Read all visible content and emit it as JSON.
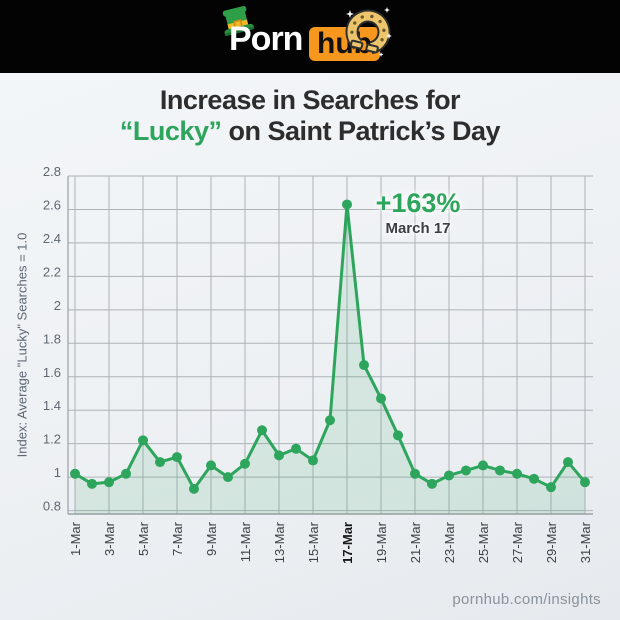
{
  "colors": {
    "green": "#2EA55C",
    "orange": "#F7971E",
    "header_bg": "#030303",
    "title_text": "#2D2D2D",
    "grid": "#ADB2B8",
    "axis": "#9AA0A6",
    "tick_text": "#5E6772",
    "x_tick_text": "#3F4347",
    "x_tick_bold_text": "#17181A",
    "footer_text": "#8B929B",
    "area_fill": "rgba(47,160,92,0.13)"
  },
  "header": {
    "logo_word1": "Porn",
    "logo_word2": "hub",
    "icons": [
      "leprechaun-hat-icon",
      "horseshoe-icon",
      "sparkle-icon"
    ]
  },
  "title": {
    "line1": "Increase in Searches for",
    "line2_highlight": "“Lucky”",
    "line2_rest": " on Saint Patrick’s Day"
  },
  "annotation": {
    "value": "+163%",
    "date": "March 17"
  },
  "footer": {
    "url": "pornhub.com/insights"
  },
  "chart_data": {
    "type": "line",
    "title": "Increase in Searches for “Lucky” on Saint Patrick’s Day",
    "ylabel": "Index: Average \"Lucky\" Searches = 1.0",
    "x": [
      "1-Mar",
      "2-Mar",
      "3-Mar",
      "4-Mar",
      "5-Mar",
      "6-Mar",
      "7-Mar",
      "8-Mar",
      "9-Mar",
      "10-Mar",
      "11-Mar",
      "12-Mar",
      "13-Mar",
      "14-Mar",
      "15-Mar",
      "16-Mar",
      "17-Mar",
      "18-Mar",
      "19-Mar",
      "20-Mar",
      "21-Mar",
      "22-Mar",
      "23-Mar",
      "24-Mar",
      "25-Mar",
      "26-Mar",
      "27-Mar",
      "28-Mar",
      "29-Mar",
      "30-Mar",
      "31-Mar"
    ],
    "values": [
      1.02,
      0.96,
      0.97,
      1.02,
      1.22,
      1.09,
      1.12,
      0.93,
      1.07,
      1.0,
      1.08,
      1.28,
      1.13,
      1.17,
      1.1,
      1.34,
      2.63,
      1.67,
      1.47,
      1.25,
      1.02,
      0.96,
      1.01,
      1.04,
      1.07,
      1.04,
      1.02,
      0.99,
      0.94,
      1.09,
      0.97
    ],
    "x_tick_step": 2,
    "bold_x_tick": "17-Mar",
    "yticks": [
      0.8,
      1,
      1.2,
      1.4,
      1.6,
      1.8,
      2,
      2.2,
      2.4,
      2.6,
      2.8
    ],
    "ytick_labels": [
      "0.8",
      "1",
      "1.2",
      "1.4",
      "1.6",
      "1.8",
      "2",
      "2.2",
      "2.4",
      "2.6",
      "2.8"
    ],
    "ylim": [
      0.78,
      2.8
    ],
    "grid": true,
    "legend": null,
    "line_color": "#2EA55C",
    "annotation": {
      "x": "17-Mar",
      "y": 2.63,
      "label": "+163%",
      "sublabel": "March 17"
    }
  }
}
